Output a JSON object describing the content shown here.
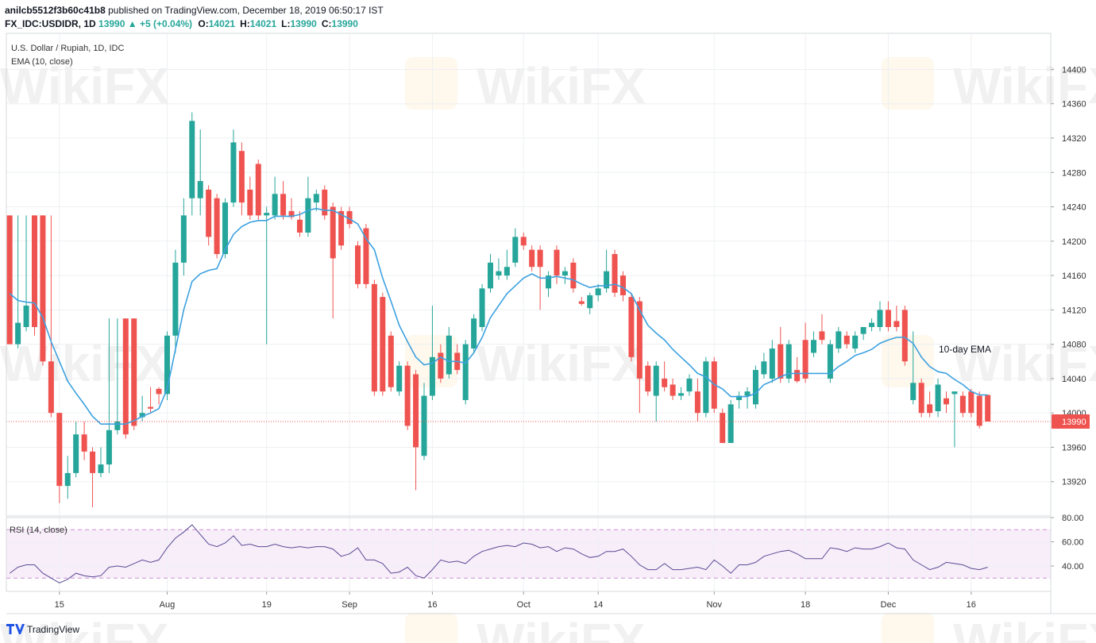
{
  "header": {
    "author": "anilcb5512f3b60c41b8",
    "published": "published on TradingView.com, December 18, 2019 06:50:17 IST",
    "symbol": "FX_IDC:USDIDR, 1D",
    "last": 13990,
    "change": "+5",
    "change_pct": "(+0.04%)",
    "ohlc": [
      {
        "label": "O:",
        "value": 14021
      },
      {
        "label": "H:",
        "value": 14021
      },
      {
        "label": "L:",
        "value": 13990
      },
      {
        "label": "C:",
        "value": 13990
      }
    ]
  },
  "watermark": "WikiFX",
  "footer": {
    "brand": "TradingView"
  },
  "chart_data": [
    {
      "type": "candlestick",
      "title": "U.S. Dollar / Rupiah, 1D, IDC",
      "up_color": "#26a69a",
      "down_color": "#ef5350",
      "open": [
        14230,
        14080,
        14100,
        14230,
        14230,
        14060,
        14000,
        13915,
        13930,
        13975,
        13955,
        13930,
        13940,
        13980,
        14110,
        14110,
        13995,
        14007,
        14028,
        14022,
        14090,
        14175,
        14250,
        14250,
        14260,
        14250,
        14185,
        14245,
        14305,
        14260,
        14290,
        14230,
        14230,
        14255,
        14235,
        14225,
        14210,
        14245,
        14260,
        14240,
        14235,
        14235,
        14195,
        14215,
        14150,
        14135,
        14090,
        14025,
        14055,
        14045,
        13950,
        14020,
        14070,
        14045,
        14070,
        14015,
        14075,
        14100,
        14145,
        14160,
        14160,
        14175,
        14205,
        14190,
        14190,
        14145,
        14190,
        14160,
        14175,
        14130,
        14122,
        14137,
        14145,
        14185,
        14160,
        14135,
        14130,
        14055,
        14020,
        14040,
        14033,
        14020,
        14025,
        14025,
        14000,
        14060,
        14000,
        13965,
        14015,
        14020,
        14010,
        14045,
        14040,
        14080,
        14040,
        14050,
        14085,
        14070,
        14095,
        14040,
        14075,
        14090,
        14075,
        14092,
        14100,
        14100,
        14120,
        14107,
        14120,
        14015,
        14035,
        14010,
        14002,
        14017,
        14022,
        14020,
        14025,
        14020,
        14021
      ],
      "high": [
        14230,
        14230,
        14230,
        14230,
        14230,
        14230,
        14000,
        13950,
        13990,
        13990,
        13960,
        13960,
        14110,
        14110,
        14110,
        14110,
        14020,
        14030,
        14030,
        14095,
        14190,
        14250,
        14350,
        14330,
        14265,
        14255,
        14250,
        14330,
        14315,
        14275,
        14295,
        14240,
        14275,
        14270,
        14250,
        14235,
        14275,
        14260,
        14265,
        14245,
        14240,
        14240,
        14200,
        14220,
        14155,
        14140,
        14095,
        14060,
        14060,
        14050,
        14035,
        14125,
        14080,
        14100,
        14080,
        14085,
        14115,
        14150,
        14185,
        14180,
        14190,
        14215,
        14210,
        14195,
        14195,
        14165,
        14195,
        14170,
        14180,
        14135,
        14140,
        14150,
        14190,
        14190,
        14165,
        14140,
        14135,
        14060,
        14060,
        14060,
        14040,
        14030,
        14045,
        14040,
        14065,
        14065,
        14005,
        14015,
        14025,
        14030,
        14055,
        14070,
        14085,
        14100,
        14085,
        14065,
        14105,
        14095,
        14115,
        14085,
        14100,
        14095,
        14095,
        14100,
        14110,
        14130,
        14130,
        14125,
        14125,
        14095,
        14040,
        14025,
        14040,
        14025,
        14025,
        14025,
        14028,
        14025,
        14021
      ],
      "low": [
        14080,
        14075,
        14095,
        14090,
        14055,
        13995,
        13895,
        13900,
        13925,
        13945,
        13890,
        13925,
        13930,
        13975,
        13970,
        13980,
        13990,
        14000,
        14010,
        14015,
        14070,
        14160,
        14230,
        14230,
        14195,
        14180,
        14180,
        14240,
        14230,
        14225,
        14225,
        14080,
        14225,
        14225,
        14225,
        14205,
        14205,
        14235,
        14225,
        14110,
        14190,
        14215,
        14145,
        14145,
        14020,
        14020,
        14025,
        14020,
        13980,
        13910,
        13945,
        14015,
        14035,
        14040,
        14045,
        14010,
        14070,
        14095,
        14140,
        14155,
        14155,
        14170,
        14190,
        14165,
        14120,
        14135,
        14150,
        14150,
        14140,
        14125,
        14115,
        14130,
        14140,
        14135,
        14130,
        14060,
        14000,
        14020,
        13990,
        14025,
        14015,
        14015,
        14020,
        13990,
        13995,
        14000,
        13965,
        13965,
        14005,
        14005,
        14005,
        14040,
        14035,
        14035,
        14035,
        14035,
        14035,
        14065,
        14080,
        14035,
        14070,
        14075,
        14070,
        14085,
        14095,
        14095,
        14095,
        14095,
        14055,
        14010,
        13995,
        13995,
        13995,
        14000,
        13960,
        13995,
        13995,
        13982,
        13990
      ],
      "close": [
        14080,
        14105,
        14125,
        14100,
        14060,
        14000,
        13915,
        13930,
        13975,
        13955,
        13930,
        13940,
        13980,
        13990,
        13975,
        13985,
        14000,
        14005,
        14022,
        14090,
        14175,
        14230,
        14340,
        14270,
        14205,
        14185,
        14245,
        14315,
        14245,
        14230,
        14230,
        14233,
        14255,
        14230,
        14228,
        14210,
        14250,
        14255,
        14230,
        14180,
        14195,
        14220,
        14150,
        14150,
        14025,
        14025,
        14030,
        14055,
        13985,
        13960,
        14020,
        14065,
        14040,
        14090,
        14050,
        14080,
        14110,
        14145,
        14175,
        14165,
        14170,
        14205,
        14195,
        14170,
        14170,
        14160,
        14160,
        14165,
        14145,
        14127,
        14137,
        14145,
        14165,
        14140,
        14137,
        14065,
        14040,
        14025,
        14055,
        14030,
        14020,
        14023,
        14040,
        14000,
        14060,
        14005,
        13965,
        14010,
        14020,
        14025,
        14050,
        14060,
        14075,
        14040,
        14080,
        14037,
        14040,
        14085,
        14085,
        14080,
        14095,
        14080,
        14090,
        14100,
        14105,
        14120,
        14100,
        14100,
        14060,
        14035,
        14000,
        14000,
        14033,
        14010,
        14025,
        14000,
        14000,
        13985,
        13990
      ],
      "series": [
        {
          "name": "EMA (10, close)",
          "color": "#3ca1e0",
          "values": [
            14139,
            14131,
            14129,
            14128,
            14111,
            14083,
            14060,
            14037,
            14023,
            14010,
            13996,
            13987,
            13987,
            13987,
            13987,
            13991,
            13996,
            14000,
            14005,
            14028,
            14074,
            14120,
            14153,
            14162,
            14166,
            14168,
            14190,
            14208,
            14217,
            14222,
            14224,
            14224,
            14229,
            14229,
            14229,
            14231,
            14236,
            14238,
            14236,
            14236,
            14231,
            14226,
            14220,
            14203,
            14190,
            14157,
            14130,
            14102,
            14083,
            14065,
            14056,
            14058,
            14065,
            14060,
            14060,
            14058,
            14070,
            14088,
            14111,
            14125,
            14139,
            14148,
            14157,
            14162,
            14157,
            14157,
            14159,
            14157,
            14155,
            14150,
            14146,
            14148,
            14148,
            14150,
            14146,
            14139,
            14120,
            14102,
            14093,
            14085,
            14074,
            14065,
            14056,
            14046,
            14042,
            14033,
            14028,
            14019,
            14019,
            14019,
            14023,
            14033,
            14037,
            14042,
            14046,
            14046,
            14046,
            14046,
            14046,
            14046,
            14054,
            14060,
            14067,
            14070,
            14074,
            14081,
            14085,
            14088,
            14088,
            14081,
            14065,
            14054,
            14048,
            14046,
            14039,
            14033,
            14025,
            14021,
            14021
          ]
        }
      ],
      "annotation": "10-day EMA",
      "last_value": 13990,
      "last_color": "#ef5350",
      "ylim": [
        13880,
        14442
      ],
      "yticks": [
        13920,
        13960,
        14000,
        14040,
        14080,
        14120,
        14160,
        14200,
        14240,
        14280,
        14320,
        14360,
        14400
      ],
      "xlim": [
        -0.4,
        125.6
      ],
      "xticks": [
        {
          "value": 6,
          "label": "15"
        },
        {
          "value": 19,
          "label": "Aug"
        },
        {
          "value": 31,
          "label": "19"
        },
        {
          "value": 41,
          "label": "Sep"
        },
        {
          "value": 51,
          "label": "16"
        },
        {
          "value": 62,
          "label": "Oct"
        },
        {
          "value": 71,
          "label": "14"
        },
        {
          "value": 85,
          "label": "Nov"
        },
        {
          "value": 96,
          "label": "18"
        },
        {
          "value": 106,
          "label": "Dec"
        },
        {
          "value": 116,
          "label": "16"
        }
      ],
      "grid": true
    },
    {
      "type": "line",
      "title": "RSI (14, close)",
      "series": [
        {
          "name": "RSI (14, close)",
          "color": "#5b4a94",
          "values": [
            34,
            39,
            41,
            41,
            34,
            30,
            26,
            29,
            34,
            32,
            31,
            32,
            39,
            40,
            39,
            42,
            45,
            43,
            45,
            55,
            63,
            68,
            74,
            66,
            58,
            56,
            59,
            65,
            57,
            58,
            56,
            56,
            58,
            56,
            55,
            56,
            55,
            56,
            56,
            54,
            48,
            50,
            55,
            45,
            45,
            42,
            34,
            35,
            39,
            32,
            30,
            37,
            45,
            43,
            44,
            42,
            48,
            52,
            54,
            56,
            57,
            56,
            59,
            58,
            55,
            56,
            52,
            55,
            54,
            50,
            47,
            48,
            52,
            52,
            54,
            48,
            41,
            37,
            37,
            42,
            37,
            37,
            38,
            39,
            37,
            45,
            40,
            34,
            41,
            41,
            43,
            48,
            50,
            52,
            53,
            50,
            46,
            46,
            46,
            55,
            54,
            52,
            55,
            54,
            54,
            56,
            59,
            55,
            54,
            45,
            41,
            37,
            39,
            43,
            42,
            41,
            38,
            37,
            39
          ]
        }
      ],
      "bands": [
        30,
        70
      ],
      "band_color": "#9c27b0",
      "ylim": [
        19,
        80
      ],
      "yticks": [
        {
          "value": 40,
          "label": "40.00"
        },
        {
          "value": 60,
          "label": "60.00"
        },
        {
          "value": 80,
          "label": "80.00"
        }
      ],
      "grid": true
    }
  ]
}
